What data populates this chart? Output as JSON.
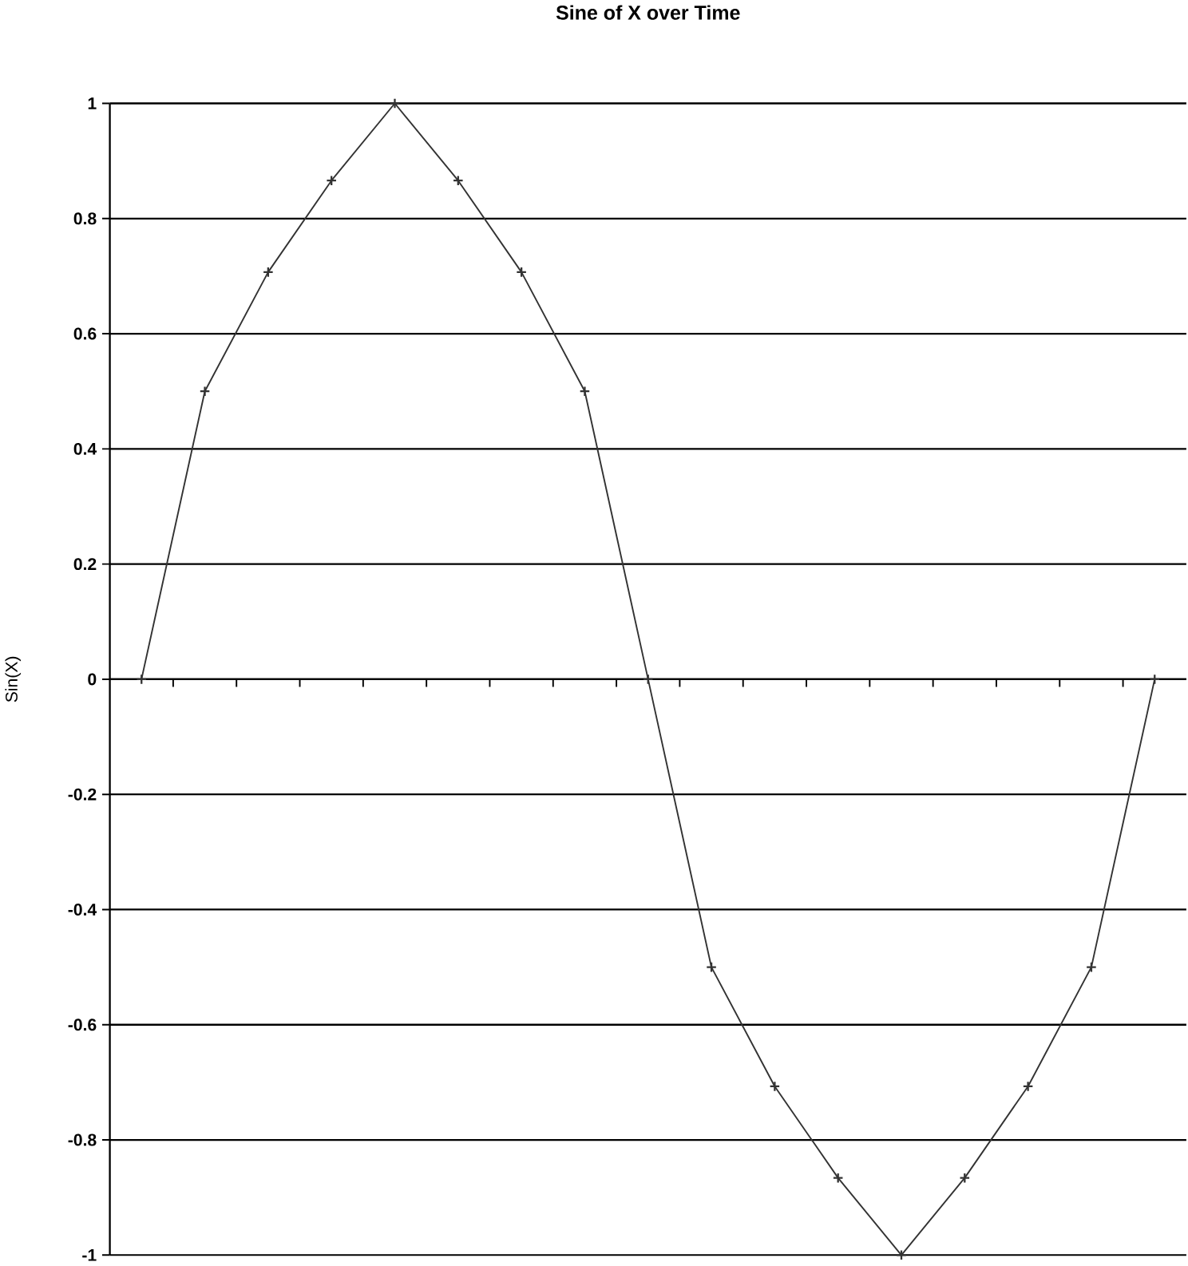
{
  "chart_data": {
    "type": "line",
    "title": "Sine of X over Time",
    "ylabel": "Sin(X)",
    "categories": [
      null,
      null,
      null,
      null,
      null,
      null,
      null,
      null,
      null,
      null,
      null,
      null,
      null,
      null,
      null,
      null,
      null
    ],
    "values": [
      0,
      0.5,
      0.707,
      0.866,
      1,
      0.866,
      0.707,
      0.5,
      0,
      -0.5,
      -0.707,
      -0.866,
      -1,
      -0.866,
      -0.707,
      -0.5,
      0
    ],
    "color": "#333333",
    "ylim": [
      -1,
      1
    ],
    "yticks": [
      -1,
      -0.8,
      -0.6,
      -0.4,
      -0.2,
      0,
      0.2,
      0.4,
      0.6,
      0.8,
      1
    ],
    "grid": "y",
    "marker": "cross",
    "line_style": "solid"
  }
}
